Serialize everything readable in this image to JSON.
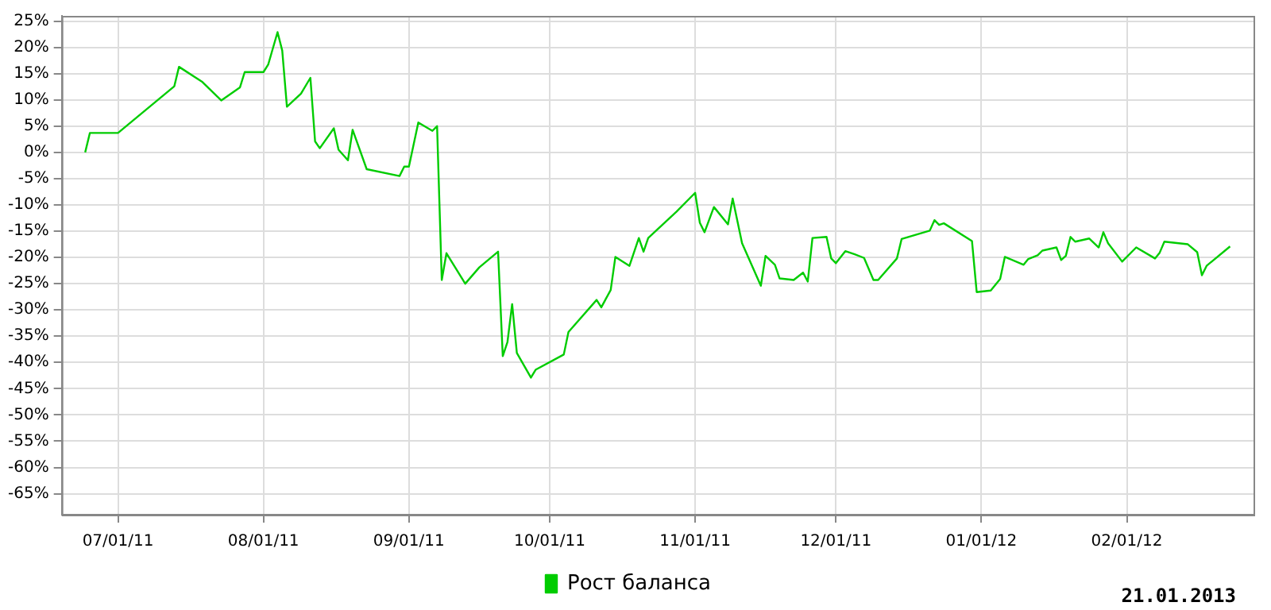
{
  "chart_data": {
    "type": "line",
    "legend": "bottom",
    "grid": true,
    "marker": "none",
    "line_style": "solid",
    "annotations": [
      "21.01.2013"
    ],
    "xlim": [
      "2011-06-19",
      "2012-02-28"
    ],
    "xticks": [
      {
        "value": "2011-07-01",
        "label": "07/01/11"
      },
      {
        "value": "2011-08-01",
        "label": "08/01/11"
      },
      {
        "value": "2011-09-01",
        "label": "09/01/11"
      },
      {
        "value": "2011-10-01",
        "label": "10/01/11"
      },
      {
        "value": "2011-11-01",
        "label": "11/01/11"
      },
      {
        "value": "2011-12-01",
        "label": "12/01/11"
      },
      {
        "value": "2012-01-01",
        "label": "01/01/12"
      },
      {
        "value": "2012-02-01",
        "label": "02/01/12"
      }
    ],
    "ylim": [
      -69,
      26
    ],
    "yticks": [
      {
        "value": 25,
        "label": "25%"
      },
      {
        "value": 20,
        "label": "20%"
      },
      {
        "value": 15,
        "label": "15%"
      },
      {
        "value": 10,
        "label": "10%"
      },
      {
        "value": 5,
        "label": "5%"
      },
      {
        "value": 0,
        "label": "0%"
      },
      {
        "value": -5,
        "label": "-5%"
      },
      {
        "value": -10,
        "label": "-10%"
      },
      {
        "value": -15,
        "label": "-15%"
      },
      {
        "value": -20,
        "label": "-20%"
      },
      {
        "value": -25,
        "label": "-25%"
      },
      {
        "value": -30,
        "label": "-30%"
      },
      {
        "value": -35,
        "label": "-35%"
      },
      {
        "value": -40,
        "label": "-40%"
      },
      {
        "value": -45,
        "label": "-45%"
      },
      {
        "value": -50,
        "label": "-50%"
      },
      {
        "value": -55,
        "label": "-55%"
      },
      {
        "value": -60,
        "label": "-60%"
      },
      {
        "value": -65,
        "label": "-65%"
      }
    ],
    "series": [
      {
        "name": "Рост баланса",
        "color": "#00cc00",
        "x": [
          "2011-06-24",
          "2011-06-25",
          "2011-07-01",
          "2011-07-13",
          "2011-07-14",
          "2011-07-19",
          "2011-07-23",
          "2011-07-27",
          "2011-07-28",
          "2011-08-01",
          "2011-08-02",
          "2011-08-04",
          "2011-08-05",
          "2011-08-06",
          "2011-08-09",
          "2011-08-11",
          "2011-08-12",
          "2011-08-13",
          "2011-08-16",
          "2011-08-17",
          "2011-08-19",
          "2011-08-20",
          "2011-08-23",
          "2011-08-30",
          "2011-08-31",
          "2011-09-01",
          "2011-09-03",
          "2011-09-06",
          "2011-09-07",
          "2011-09-08",
          "2011-09-09",
          "2011-09-13",
          "2011-09-16",
          "2011-09-20",
          "2011-09-21",
          "2011-09-22",
          "2011-09-23",
          "2011-09-24",
          "2011-09-27",
          "2011-09-28",
          "2011-10-04",
          "2011-10-05",
          "2011-10-11",
          "2011-10-12",
          "2011-10-14",
          "2011-10-15",
          "2011-10-18",
          "2011-10-20",
          "2011-10-21",
          "2011-10-22",
          "2011-10-28",
          "2011-11-01",
          "2011-11-02",
          "2011-11-03",
          "2011-11-05",
          "2011-11-08",
          "2011-11-09",
          "2011-11-11",
          "2011-11-15",
          "2011-11-16",
          "2011-11-18",
          "2011-11-19",
          "2011-11-22",
          "2011-11-24",
          "2011-11-25",
          "2011-11-26",
          "2011-11-29",
          "2011-11-30",
          "2011-12-01",
          "2011-12-03",
          "2011-12-05",
          "2011-12-07",
          "2011-12-09",
          "2011-12-10",
          "2011-12-14",
          "2011-12-15",
          "2011-12-21",
          "2011-12-22",
          "2011-12-23",
          "2011-12-24",
          "2011-12-30",
          "2011-12-31",
          "2012-01-03",
          "2012-01-05",
          "2012-01-06",
          "2012-01-10",
          "2012-01-11",
          "2012-01-13",
          "2012-01-14",
          "2012-01-17",
          "2012-01-18",
          "2012-01-19",
          "2012-01-20",
          "2012-01-21",
          "2012-01-24",
          "2012-01-26",
          "2012-01-27",
          "2012-01-28",
          "2012-01-31",
          "2012-02-03",
          "2012-02-07",
          "2012-02-08",
          "2012-02-09",
          "2012-02-14",
          "2012-02-16",
          "2012-02-17",
          "2012-02-18",
          "2012-02-23"
        ],
        "values": [
          0,
          3.7,
          3.7,
          12.6,
          16.3,
          13.4,
          9.9,
          12.4,
          15.3,
          15.3,
          16.7,
          22.9,
          19.4,
          8.7,
          11.2,
          14.2,
          2.1,
          0.8,
          4.6,
          0.5,
          -1.5,
          4.3,
          -3.2,
          -4.5,
          -2.7,
          -2.7,
          5.7,
          4.1,
          5.0,
          -24.3,
          -19.2,
          -25.0,
          -21.9,
          -18.9,
          -38.8,
          -36.1,
          -28.9,
          -38.2,
          -42.9,
          -41.4,
          -38.5,
          -34.2,
          -28.1,
          -29.5,
          -26.2,
          -19.9,
          -21.6,
          -16.3,
          -18.9,
          -16.3,
          -11.3,
          -7.7,
          -13.4,
          -15.2,
          -10.4,
          -13.7,
          -8.8,
          -17.3,
          -25.4,
          -19.7,
          -21.4,
          -24.0,
          -24.3,
          -22.9,
          -24.6,
          -16.3,
          -16.1,
          -20.2,
          -21.1,
          -18.8,
          -19.4,
          -20.1,
          -24.3,
          -24.3,
          -20.2,
          -16.5,
          -14.9,
          -12.9,
          -13.8,
          -13.5,
          -16.9,
          -26.6,
          -26.3,
          -24.1,
          -19.9,
          -21.4,
          -20.3,
          -19.6,
          -18.7,
          -18.1,
          -20.5,
          -19.7,
          -16.1,
          -17.0,
          -16.4,
          -18.1,
          -15.2,
          -17.3,
          -20.8,
          -18.1,
          -20.2,
          -19.1,
          -17.0,
          -17.5,
          -19.0,
          -23.4,
          -21.6,
          -17.9
        ]
      }
    ]
  }
}
